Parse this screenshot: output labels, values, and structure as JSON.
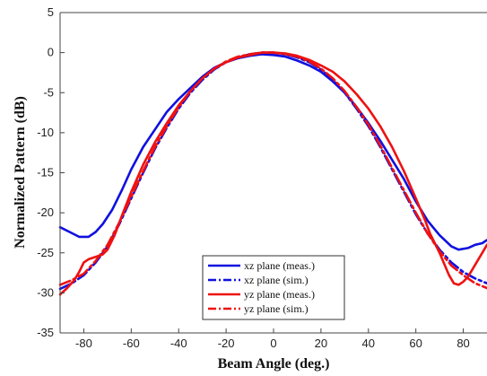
{
  "chart_data": {
    "type": "line",
    "title": "",
    "xlabel": "Beam Angle  (deg.)",
    "ylabel": "Normalized Pattern  (dB)",
    "xlim": [
      -90,
      90
    ],
    "ylim": [
      -35,
      5
    ],
    "xticks": [
      -80,
      -60,
      -40,
      -20,
      0,
      20,
      40,
      60,
      80
    ],
    "yticks": [
      5,
      0,
      -5,
      -10,
      -15,
      -20,
      -25,
      -30,
      -35
    ],
    "grid": false,
    "legend_position": "bottom-center",
    "series": [
      {
        "name": "xz plane (meas.)",
        "color": "#1010e0",
        "style": "solid",
        "points": [
          [
            -90,
            -21.8
          ],
          [
            -86,
            -22.4
          ],
          [
            -82,
            -23.0
          ],
          [
            -78,
            -23.0
          ],
          [
            -75,
            -22.4
          ],
          [
            -72,
            -21.4
          ],
          [
            -68,
            -19.6
          ],
          [
            -64,
            -17.2
          ],
          [
            -60,
            -14.6
          ],
          [
            -55,
            -11.8
          ],
          [
            -50,
            -9.6
          ],
          [
            -45,
            -7.4
          ],
          [
            -40,
            -5.8
          ],
          [
            -35,
            -4.4
          ],
          [
            -30,
            -3.0
          ],
          [
            -25,
            -1.9
          ],
          [
            -20,
            -1.2
          ],
          [
            -15,
            -0.7
          ],
          [
            -10,
            -0.4
          ],
          [
            -5,
            -0.2
          ],
          [
            0,
            -0.3
          ],
          [
            5,
            -0.5
          ],
          [
            10,
            -1.0
          ],
          [
            15,
            -1.6
          ],
          [
            20,
            -2.4
          ],
          [
            25,
            -3.6
          ],
          [
            30,
            -5.0
          ],
          [
            35,
            -6.8
          ],
          [
            40,
            -8.8
          ],
          [
            45,
            -11.0
          ],
          [
            50,
            -13.4
          ],
          [
            55,
            -15.8
          ],
          [
            60,
            -18.6
          ],
          [
            65,
            -21.0
          ],
          [
            70,
            -22.8
          ],
          [
            75,
            -24.2
          ],
          [
            78,
            -24.6
          ],
          [
            82,
            -24.4
          ],
          [
            85,
            -24.0
          ],
          [
            88,
            -23.8
          ],
          [
            90,
            -23.4
          ]
        ]
      },
      {
        "name": "xz plane (sim.)",
        "color": "#1010e0",
        "style": "dashdot",
        "points": [
          [
            -90,
            -29.5
          ],
          [
            -85,
            -28.8
          ],
          [
            -80,
            -27.8
          ],
          [
            -75,
            -26.2
          ],
          [
            -70,
            -24.2
          ],
          [
            -65,
            -21.4
          ],
          [
            -60,
            -18.2
          ],
          [
            -55,
            -15.0
          ],
          [
            -50,
            -12.0
          ],
          [
            -45,
            -9.4
          ],
          [
            -40,
            -7.0
          ],
          [
            -35,
            -5.0
          ],
          [
            -30,
            -3.4
          ],
          [
            -25,
            -2.1
          ],
          [
            -20,
            -1.2
          ],
          [
            -15,
            -0.6
          ],
          [
            -10,
            -0.2
          ],
          [
            -5,
            0.0
          ],
          [
            0,
            0.0
          ],
          [
            5,
            -0.2
          ],
          [
            10,
            -0.6
          ],
          [
            15,
            -1.2
          ],
          [
            20,
            -2.1
          ],
          [
            25,
            -3.4
          ],
          [
            30,
            -5.0
          ],
          [
            35,
            -7.0
          ],
          [
            40,
            -9.2
          ],
          [
            45,
            -11.8
          ],
          [
            50,
            -14.6
          ],
          [
            55,
            -17.4
          ],
          [
            60,
            -20.2
          ],
          [
            65,
            -22.6
          ],
          [
            70,
            -24.6
          ],
          [
            75,
            -26.2
          ],
          [
            80,
            -27.4
          ],
          [
            85,
            -28.2
          ],
          [
            90,
            -28.8
          ]
        ]
      },
      {
        "name": "yz plane (meas.)",
        "color": "#ee1111",
        "style": "solid",
        "points": [
          [
            -90,
            -30.2
          ],
          [
            -87,
            -29.4
          ],
          [
            -84,
            -28.4
          ],
          [
            -82,
            -27.4
          ],
          [
            -80,
            -26.2
          ],
          [
            -78,
            -25.8
          ],
          [
            -76,
            -25.6
          ],
          [
            -74,
            -25.4
          ],
          [
            -72,
            -25.2
          ],
          [
            -70,
            -24.6
          ],
          [
            -67,
            -22.8
          ],
          [
            -64,
            -20.4
          ],
          [
            -60,
            -17.4
          ],
          [
            -55,
            -14.0
          ],
          [
            -50,
            -11.2
          ],
          [
            -45,
            -8.8
          ],
          [
            -40,
            -6.6
          ],
          [
            -35,
            -4.8
          ],
          [
            -30,
            -3.2
          ],
          [
            -25,
            -2.0
          ],
          [
            -20,
            -1.2
          ],
          [
            -15,
            -0.6
          ],
          [
            -10,
            -0.3
          ],
          [
            -5,
            0.0
          ],
          [
            0,
            0.0
          ],
          [
            5,
            -0.1
          ],
          [
            10,
            -0.4
          ],
          [
            15,
            -0.9
          ],
          [
            20,
            -1.6
          ],
          [
            25,
            -2.4
          ],
          [
            30,
            -3.6
          ],
          [
            35,
            -5.2
          ],
          [
            40,
            -7.0
          ],
          [
            45,
            -9.2
          ],
          [
            50,
            -11.8
          ],
          [
            55,
            -14.8
          ],
          [
            60,
            -18.2
          ],
          [
            64,
            -21.0
          ],
          [
            66,
            -22.6
          ],
          [
            68,
            -23.8
          ],
          [
            70,
            -25.0
          ],
          [
            72,
            -26.4
          ],
          [
            74,
            -27.8
          ],
          [
            76,
            -28.8
          ],
          [
            78,
            -29.0
          ],
          [
            80,
            -28.6
          ],
          [
            82,
            -28.0
          ],
          [
            84,
            -27.0
          ],
          [
            86,
            -26.0
          ],
          [
            88,
            -25.0
          ],
          [
            90,
            -24.0
          ]
        ]
      },
      {
        "name": "yz plane (sim.)",
        "color": "#ee1111",
        "style": "dashdot",
        "points": [
          [
            -90,
            -29.0
          ],
          [
            -85,
            -28.4
          ],
          [
            -80,
            -27.6
          ],
          [
            -75,
            -26.0
          ],
          [
            -70,
            -24.0
          ],
          [
            -65,
            -21.2
          ],
          [
            -60,
            -18.0
          ],
          [
            -55,
            -14.8
          ],
          [
            -50,
            -11.8
          ],
          [
            -45,
            -9.2
          ],
          [
            -40,
            -6.8
          ],
          [
            -35,
            -4.8
          ],
          [
            -30,
            -3.2
          ],
          [
            -25,
            -2.0
          ],
          [
            -20,
            -1.1
          ],
          [
            -15,
            -0.5
          ],
          [
            -10,
            -0.2
          ],
          [
            -5,
            0.0
          ],
          [
            0,
            0.0
          ],
          [
            5,
            -0.2
          ],
          [
            10,
            -0.5
          ],
          [
            15,
            -1.1
          ],
          [
            20,
            -2.0
          ],
          [
            25,
            -3.2
          ],
          [
            30,
            -4.8
          ],
          [
            35,
            -6.8
          ],
          [
            40,
            -9.0
          ],
          [
            45,
            -11.6
          ],
          [
            50,
            -14.4
          ],
          [
            55,
            -17.2
          ],
          [
            60,
            -20.0
          ],
          [
            65,
            -22.6
          ],
          [
            70,
            -24.8
          ],
          [
            75,
            -26.6
          ],
          [
            80,
            -27.8
          ],
          [
            85,
            -28.8
          ],
          [
            90,
            -29.4
          ]
        ]
      }
    ]
  }
}
